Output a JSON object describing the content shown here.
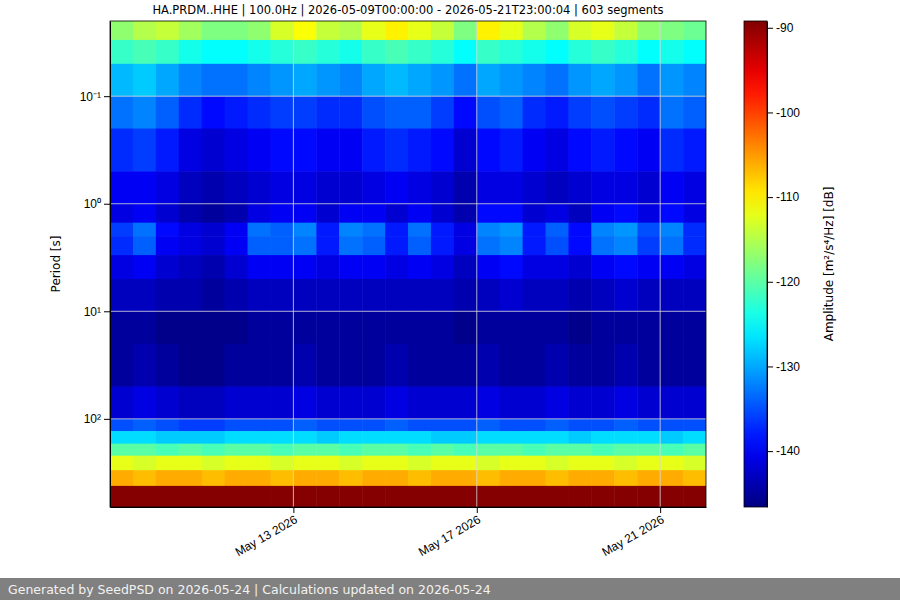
{
  "chart_data": {
    "type": "heatmap",
    "title": "HA.PRDM..HHE | 100.0Hz | 2026-05-09T00:00:00 - 2026-05-21T23:00:04 | 603 segments",
    "y_label": "Period [s]",
    "colorbar_label": "Amplitude [m²/s⁴/Hz] [dB]",
    "footer": "Generated by SeedPSD on 2026-05-24 | Calculations updated on 2026-05-24",
    "log": "y",
    "grid": true,
    "xlim": [
      "2026-05-09T00:00:00",
      "2026-05-22T00:00:00"
    ],
    "xticks": [
      {
        "value": "2026-05-13T00:00:00",
        "label": "May 13 2026"
      },
      {
        "value": "2026-05-17T00:00:00",
        "label": "May 17 2026"
      },
      {
        "value": "2026-05-21T00:00:00",
        "label": "May 21 2026"
      }
    ],
    "ylim": [
      0.02,
      660
    ],
    "yticks": [
      {
        "value": 0.1,
        "label": "10⁻¹"
      },
      {
        "value": 1,
        "label": "10⁰"
      },
      {
        "value": 10,
        "label": "10¹"
      },
      {
        "value": 100,
        "label": "10²"
      }
    ],
    "clim": [
      -146.6,
      -89.2
    ],
    "cticks": [
      -90,
      -100,
      -110,
      -120,
      -130,
      -140
    ],
    "x_edges": [
      "2026-05-09T00:00:00",
      "2026-05-09T12:00:00",
      "2026-05-10T00:00:00",
      "2026-05-10T12:00:00",
      "2026-05-11T00:00:00",
      "2026-05-11T12:00:00",
      "2026-05-12T00:00:00",
      "2026-05-12T12:00:00",
      "2026-05-13T00:00:00",
      "2026-05-13T12:00:00",
      "2026-05-14T00:00:00",
      "2026-05-14T12:00:00",
      "2026-05-15T00:00:00",
      "2026-05-15T12:00:00",
      "2026-05-16T00:00:00",
      "2026-05-16T12:00:00",
      "2026-05-17T00:00:00",
      "2026-05-17T12:00:00",
      "2026-05-18T00:00:00",
      "2026-05-18T12:00:00",
      "2026-05-19T00:00:00",
      "2026-05-19T12:00:00",
      "2026-05-20T00:00:00",
      "2026-05-20T12:00:00",
      "2026-05-21T00:00:00",
      "2026-05-21T12:00:00",
      "2026-05-22T00:00:00"
    ],
    "y_edges": [
      0.02,
      0.03,
      0.05,
      0.1,
      0.2,
      0.5,
      1,
      1.5,
      2,
      3,
      5,
      10,
      20,
      50,
      100,
      130,
      170,
      220,
      300,
      420,
      660
    ],
    "z": [
      [
        -117,
        -115,
        -114,
        -116,
        -118,
        -118,
        -117,
        -113,
        -111,
        -114,
        -115,
        -112,
        -110,
        -112,
        -114,
        -118,
        -110,
        -112,
        -115,
        -117,
        -113,
        -112,
        -114,
        -117,
        -118,
        -119
      ],
      [
        -122,
        -121,
        -122,
        -124,
        -125,
        -125,
        -124,
        -123,
        -122,
        -123,
        -124,
        -122,
        -121,
        -122,
        -123,
        -125,
        -122,
        -123,
        -124,
        -125,
        -123,
        -122,
        -123,
        -125,
        -124,
        -125
      ],
      [
        -129,
        -128,
        -130,
        -132,
        -133,
        -133,
        -132,
        -131,
        -130,
        -131,
        -132,
        -130,
        -129,
        -130,
        -131,
        -133,
        -130,
        -131,
        -132,
        -133,
        -131,
        -130,
        -131,
        -133,
        -131,
        -132
      ],
      [
        -133,
        -132,
        -134,
        -137,
        -139,
        -138,
        -137,
        -136,
        -136,
        -137,
        -137,
        -135,
        -134,
        -134,
        -136,
        -139,
        -135,
        -134,
        -137,
        -138,
        -136,
        -135,
        -136,
        -137,
        -133,
        -134
      ],
      [
        -137,
        -136,
        -138,
        -141,
        -142,
        -141,
        -140,
        -139,
        -139,
        -140,
        -140,
        -138,
        -137,
        -138,
        -139,
        -142,
        -139,
        -138,
        -140,
        -141,
        -139,
        -138,
        -139,
        -140,
        -137,
        -138
      ],
      [
        -140,
        -140,
        -141,
        -143,
        -144,
        -143,
        -142,
        -141,
        -141,
        -142,
        -142,
        -141,
        -140,
        -141,
        -142,
        -144,
        -141,
        -141,
        -142,
        -143,
        -142,
        -141,
        -141,
        -142,
        -140,
        -141
      ],
      [
        -141,
        -140,
        -142,
        -144,
        -145,
        -144,
        -141,
        -140,
        -140,
        -142,
        -140,
        -140,
        -142,
        -140,
        -142,
        -144,
        -139,
        -139,
        -142,
        -141,
        -143,
        -140,
        -139,
        -141,
        -139,
        -141
      ],
      [
        -136,
        -133,
        -139,
        -141,
        -142,
        -140,
        -133,
        -134,
        -132,
        -138,
        -132,
        -133,
        -138,
        -133,
        -138,
        -141,
        -132,
        -131,
        -138,
        -134,
        -139,
        -132,
        -131,
        -135,
        -132,
        -137
      ],
      [
        -137,
        -134,
        -140,
        -141,
        -142,
        -140,
        -134,
        -134,
        -133,
        -138,
        -133,
        -134,
        -138,
        -134,
        -138,
        -141,
        -133,
        -132,
        -138,
        -135,
        -139,
        -133,
        -132,
        -136,
        -133,
        -137
      ],
      [
        -141,
        -140,
        -142,
        -143,
        -144,
        -142,
        -140,
        -140,
        -140,
        -141,
        -140,
        -140,
        -141,
        -140,
        -141,
        -143,
        -140,
        -139,
        -141,
        -141,
        -142,
        -140,
        -139,
        -140,
        -140,
        -141
      ],
      [
        -143,
        -143,
        -144,
        -144,
        -145,
        -144,
        -143,
        -143,
        -143,
        -143,
        -143,
        -143,
        -143,
        -143,
        -143,
        -144,
        -143,
        -142,
        -143,
        -143,
        -144,
        -143,
        -142,
        -143,
        -143,
        -143
      ],
      [
        -145,
        -145,
        -146,
        -146,
        -146,
        -146,
        -145,
        -145,
        -145,
        -145,
        -145,
        -145,
        -145,
        -145,
        -145,
        -146,
        -145,
        -145,
        -145,
        -145,
        -146,
        -145,
        -145,
        -145,
        -145,
        -145
      ],
      [
        -145,
        -144,
        -145,
        -146,
        -146,
        -145,
        -145,
        -145,
        -144,
        -145,
        -145,
        -145,
        -144,
        -145,
        -145,
        -145,
        -144,
        -145,
        -145,
        -144,
        -145,
        -145,
        -144,
        -145,
        -145,
        -145
      ],
      [
        -142,
        -141,
        -142,
        -143,
        -143,
        -142,
        -142,
        -142,
        -141,
        -142,
        -142,
        -142,
        -141,
        -142,
        -142,
        -142,
        -141,
        -142,
        -142,
        -141,
        -142,
        -142,
        -141,
        -142,
        -142,
        -142
      ],
      [
        -135,
        -134,
        -135,
        -136,
        -136,
        -135,
        -135,
        -135,
        -134,
        -135,
        -135,
        -135,
        -134,
        -135,
        -135,
        -135,
        -134,
        -135,
        -135,
        -134,
        -135,
        -135,
        -134,
        -135,
        -135,
        -135
      ],
      [
        -127,
        -127,
        -128,
        -128,
        -128,
        -127,
        -127,
        -127,
        -127,
        -128,
        -127,
        -127,
        -127,
        -127,
        -128,
        -128,
        -127,
        -127,
        -127,
        -127,
        -128,
        -127,
        -127,
        -127,
        -128,
        -127
      ],
      [
        -120,
        -120,
        -121,
        -120,
        -121,
        -120,
        -120,
        -121,
        -120,
        -120,
        -121,
        -120,
        -120,
        -121,
        -120,
        -121,
        -120,
        -120,
        -121,
        -120,
        -120,
        -121,
        -120,
        -120,
        -121,
        -120
      ],
      [
        -112,
        -113,
        -112,
        -112,
        -113,
        -112,
        -112,
        -113,
        -112,
        -112,
        -113,
        -112,
        -112,
        -113,
        -112,
        -112,
        -113,
        -112,
        -112,
        -113,
        -112,
        -112,
        -113,
        -112,
        -112,
        -113
      ],
      [
        -106,
        -107,
        -106,
        -106,
        -107,
        -106,
        -106,
        -107,
        -106,
        -106,
        -107,
        -106,
        -106,
        -107,
        -106,
        -106,
        -107,
        -106,
        -106,
        -107,
        -106,
        -106,
        -107,
        -106,
        -106,
        -107
      ],
      [
        -89.5,
        -89.5,
        -89.5,
        -89.5,
        -89.5,
        -89.5,
        -89.5,
        -89.5,
        -89.5,
        -89.5,
        -89.5,
        -89.5,
        -89.5,
        -89.5,
        -89.5,
        -89.5,
        -89.5,
        -89.5,
        -89.5,
        -89.5,
        -89.5,
        -89.5,
        -89.5,
        -89.5,
        -89.5,
        -89.5
      ]
    ]
  }
}
